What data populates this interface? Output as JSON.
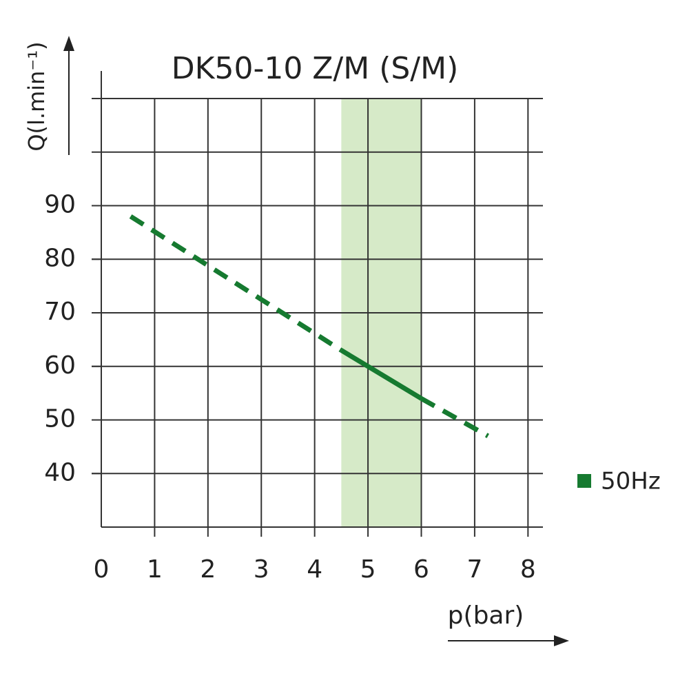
{
  "chart_data": {
    "type": "line",
    "title": "DK50-10 Z/M (S/M)",
    "x_label": "p(bar)",
    "y_label": "Q(l.min⁻¹)",
    "x": [
      0.55,
      4.5,
      5,
      6,
      7.25
    ],
    "series": [
      {
        "name": "50Hz",
        "color": "#167a30",
        "values": [
          88,
          63,
          60,
          54,
          47
        ]
      }
    ],
    "band": [
      4.5,
      6
    ],
    "band_color": "#d6eac8",
    "xlim": [
      0,
      8.28
    ],
    "xticks": [
      0,
      1,
      2,
      3,
      4,
      5,
      6,
      7,
      8
    ],
    "ylim": [
      30,
      110
    ],
    "yticks": [
      40,
      50,
      60,
      70,
      80,
      90
    ],
    "ygrid_step": 10,
    "grid": true,
    "legend": "right"
  }
}
